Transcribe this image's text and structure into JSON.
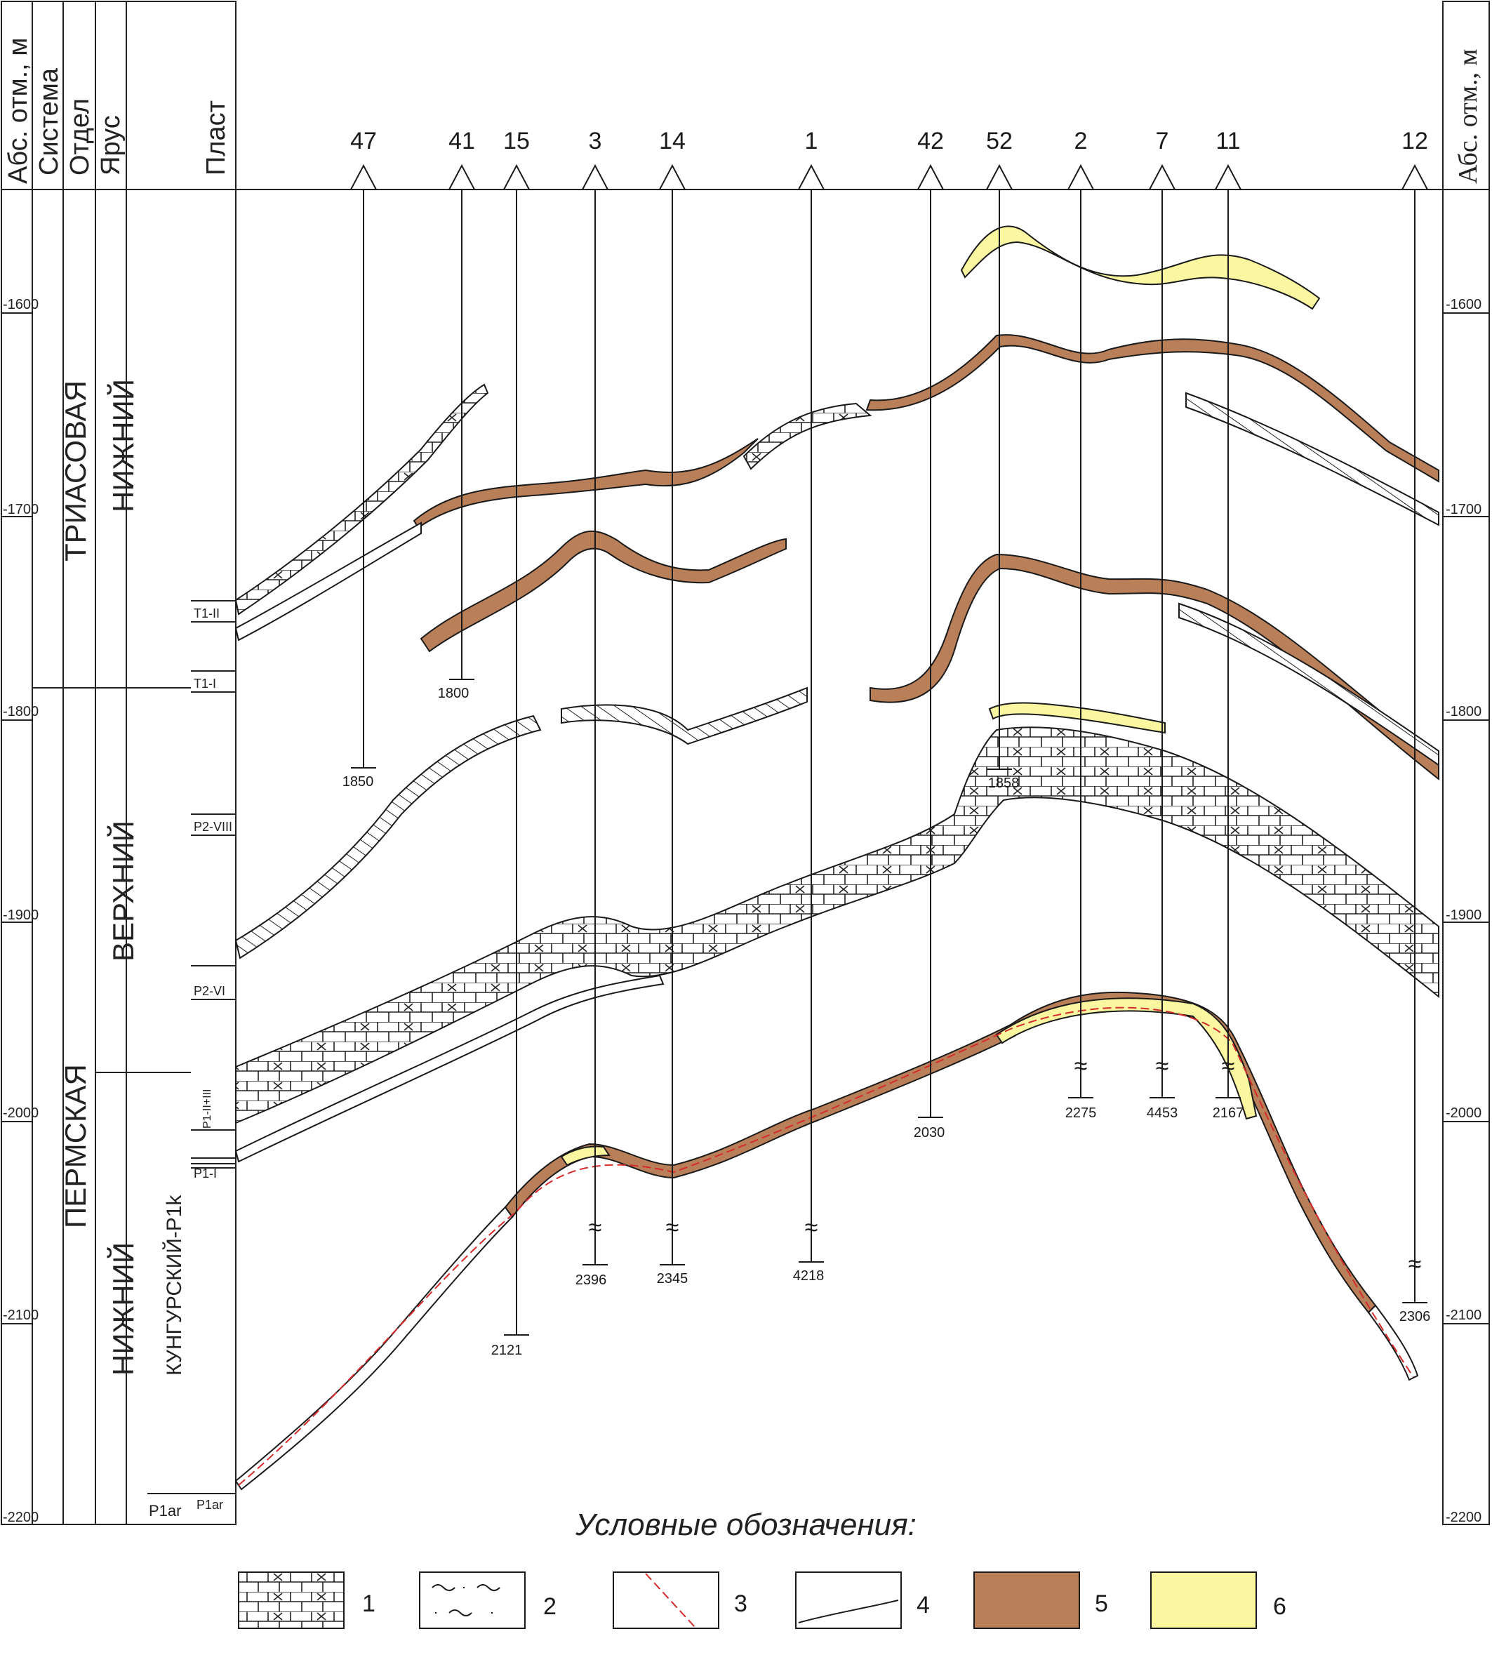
{
  "depth_axis": {
    "title": "Абс. отм., м",
    "ticks": [
      "-1600",
      "-1700",
      "-1800",
      "-1900",
      "-2000",
      "-2100",
      "-2200"
    ]
  },
  "strat_columns": {
    "headers": [
      "Система",
      "Отдел",
      "Ярус",
      "Пласт"
    ],
    "systems": [
      "ТРИАСОВАЯ",
      "ПЕРМСКАЯ"
    ],
    "series": [
      "НИЖНИЙ",
      "ВЕРХНИЙ",
      "НИЖНИЙ"
    ],
    "stages": [
      "КУНГУРСКИЙ-P1k",
      "P1ar"
    ],
    "layers": [
      "T1-II",
      "T1-I",
      "P2-VIII",
      "P2-VI",
      "P1-II+III",
      "P1-I",
      "P1ar"
    ]
  },
  "wells": {
    "names": [
      "47",
      "41",
      "15",
      "3",
      "14",
      "1",
      "42",
      "52",
      "2",
      "7",
      "11",
      "12"
    ],
    "bottom_depths": [
      "1850",
      "1800",
      "2121",
      "2396",
      "2345",
      "4218",
      "2030",
      "1858",
      "2275",
      "4453",
      "2167",
      "2306"
    ]
  },
  "colors": {
    "brown": "#b97f58",
    "yellow": "#fbf7a0",
    "line": "#1a1a1a",
    "red_dash": "#d62b2b"
  },
  "legend": {
    "title": "Условные обозначения:",
    "items": [
      "1",
      "2",
      "3",
      "4",
      "5",
      "6"
    ]
  }
}
